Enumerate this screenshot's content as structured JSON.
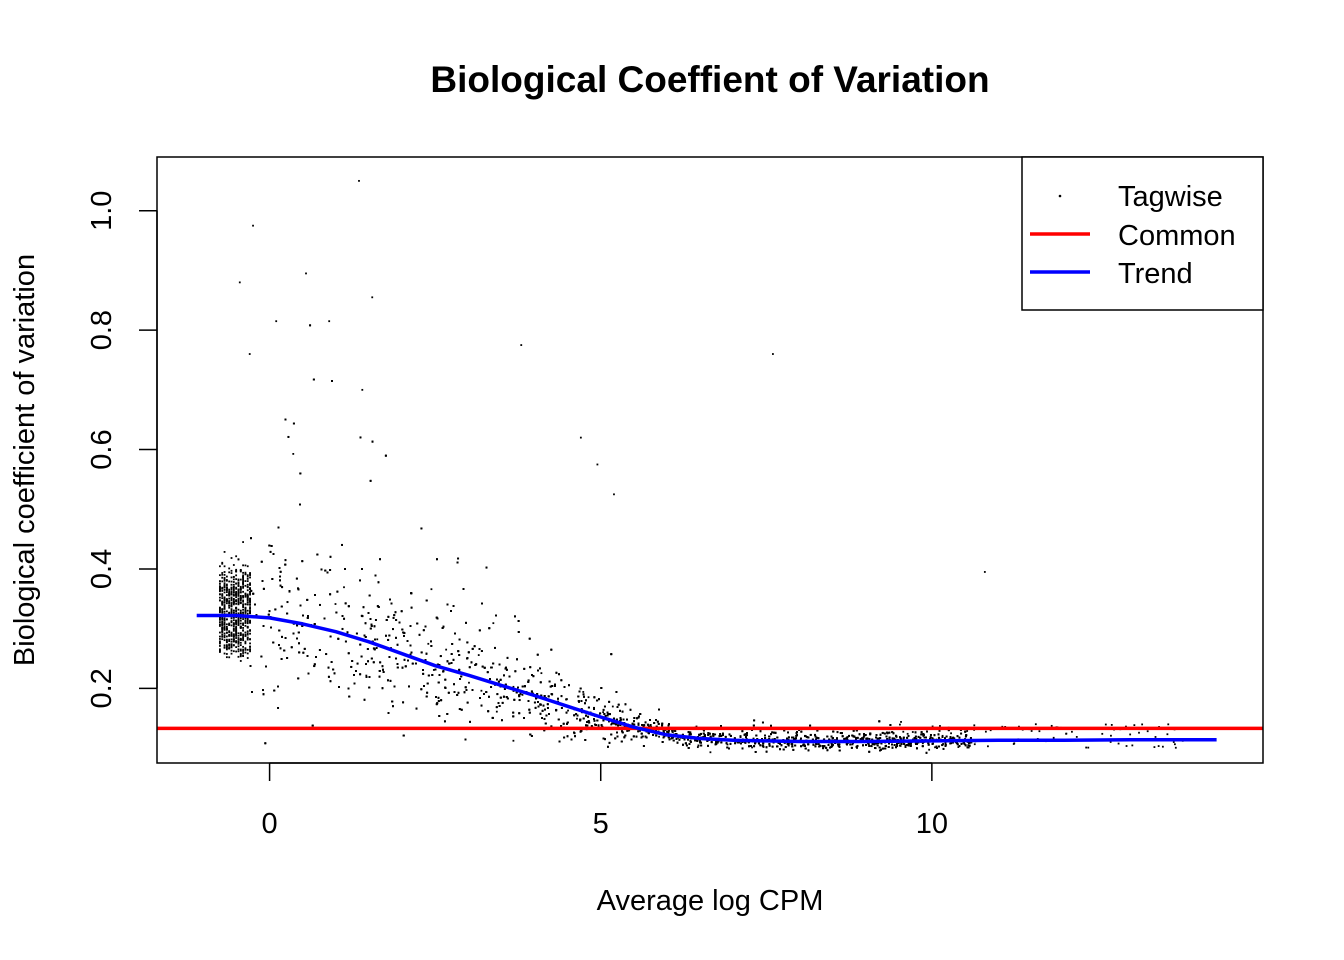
{
  "chart_data": {
    "type": "scatter",
    "title": "Biological Coeffient of Variation",
    "xlabel": "Average log CPM",
    "ylabel": "Biological coefficient of variation",
    "xlim": [
      -1.7,
      15.0
    ],
    "ylim": [
      0.075,
      1.09
    ],
    "xticks": [
      0,
      5,
      10
    ],
    "yticks": [
      0.2,
      0.4,
      0.6,
      0.8,
      1.0
    ],
    "xtick_labels": [
      "0",
      "5",
      "10"
    ],
    "ytick_labels": [
      "0.2",
      "0.4",
      "0.6",
      "0.8",
      "1.0"
    ],
    "grid": false,
    "legend": {
      "position": "top-right",
      "entries": [
        {
          "label": "Tagwise",
          "kind": "point",
          "color": "#000000"
        },
        {
          "label": "Common",
          "kind": "line",
          "color": "#ff0000"
        },
        {
          "label": "Trend",
          "kind": "line",
          "color": "#0000ff"
        }
      ]
    },
    "series": [
      {
        "name": "Tagwise",
        "kind": "points",
        "color": "#000000",
        "note_outliers_x": [
          1.35,
          -0.25,
          -0.45,
          0.55,
          1.55,
          0.9,
          3.8,
          7.6,
          0.1,
          -0.3,
          1.4,
          4.7,
          5.2,
          4.95,
          10.8
        ],
        "note_outliers_y": [
          1.05,
          0.975,
          0.88,
          0.895,
          0.855,
          0.815,
          0.775,
          0.76,
          0.815,
          0.76,
          0.7,
          0.62,
          0.525,
          0.575,
          0.395
        ]
      },
      {
        "name": "Common",
        "kind": "hline",
        "color": "#ff0000",
        "y": 0.133
      },
      {
        "name": "Trend",
        "kind": "line",
        "color": "#0000ff",
        "x": [
          -1.1,
          -0.5,
          0.0,
          0.5,
          1.0,
          1.5,
          2.0,
          2.5,
          3.0,
          3.5,
          4.0,
          4.5,
          5.0,
          5.5,
          6.0,
          6.5,
          7.0,
          7.5,
          8.0,
          9.0,
          10.0,
          11.0,
          12.0,
          13.0,
          14.3
        ],
        "y": [
          0.322,
          0.322,
          0.318,
          0.308,
          0.295,
          0.278,
          0.258,
          0.238,
          0.222,
          0.205,
          0.188,
          0.17,
          0.152,
          0.135,
          0.122,
          0.116,
          0.113,
          0.112,
          0.111,
          0.111,
          0.112,
          0.113,
          0.113,
          0.114,
          0.114
        ]
      }
    ]
  }
}
